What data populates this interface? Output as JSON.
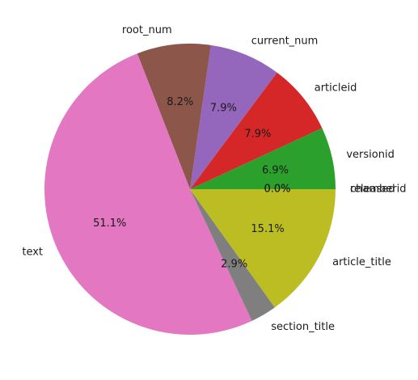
{
  "chart_data": {
    "type": "pie",
    "start_angle_deg": 0,
    "direction": "counterclockwise",
    "slices": [
      {
        "label": "versionid",
        "value": 6.9,
        "pct_label": "6.9%",
        "color": "#2ca02c"
      },
      {
        "label": "articleid",
        "value": 7.9,
        "pct_label": "7.9%",
        "color": "#d62728"
      },
      {
        "label": "current_num",
        "value": 7.9,
        "pct_label": "7.9%",
        "color": "#9467bd"
      },
      {
        "label": "root_num",
        "value": 8.2,
        "pct_label": "8.2%",
        "color": "#8c564b"
      },
      {
        "label": "text",
        "value": 51.1,
        "pct_label": "51.1%",
        "color": "#e377c2"
      },
      {
        "label": "section_title",
        "value": 2.9,
        "pct_label": "2.9%",
        "color": "#7f7f7f"
      },
      {
        "label": "article_title",
        "value": 15.1,
        "pct_label": "15.1%",
        "color": "#bcbd22"
      },
      {
        "label": "chamberid",
        "value": 0.0,
        "pct_label": "0.0%",
        "color": "#1f77b4"
      },
      {
        "label": "released",
        "value": 0.0,
        "pct_label": "0.0%",
        "color": "#ff7f0e"
      }
    ]
  }
}
